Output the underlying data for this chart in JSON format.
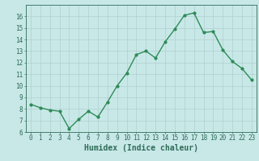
{
  "x": [
    0,
    1,
    2,
    3,
    4,
    5,
    6,
    7,
    8,
    9,
    10,
    11,
    12,
    13,
    14,
    15,
    16,
    17,
    18,
    19,
    20,
    21,
    22,
    23
  ],
  "y": [
    8.4,
    8.1,
    7.9,
    7.8,
    6.3,
    7.1,
    7.8,
    7.3,
    8.6,
    10.0,
    11.1,
    12.7,
    13.0,
    12.4,
    13.8,
    14.9,
    16.1,
    16.3,
    14.6,
    14.7,
    13.1,
    12.1,
    11.5,
    10.5
  ],
  "line_color": "#2e8b57",
  "marker_color": "#2e8b57",
  "bg_color": "#c8e8e8",
  "grid_color": "#b0d0d0",
  "axis_color": "#2e6b57",
  "xlabel": "Humidex (Indice chaleur)",
  "xlim": [
    -0.5,
    23.5
  ],
  "ylim": [
    6,
    17
  ],
  "yticks": [
    6,
    7,
    8,
    9,
    10,
    11,
    12,
    13,
    14,
    15,
    16
  ],
  "xticks": [
    0,
    1,
    2,
    3,
    4,
    5,
    6,
    7,
    8,
    9,
    10,
    11,
    12,
    13,
    14,
    15,
    16,
    17,
    18,
    19,
    20,
    21,
    22,
    23
  ],
  "tick_fontsize": 5.5,
  "xlabel_fontsize": 7,
  "marker_size": 2.0,
  "line_width": 1.0
}
